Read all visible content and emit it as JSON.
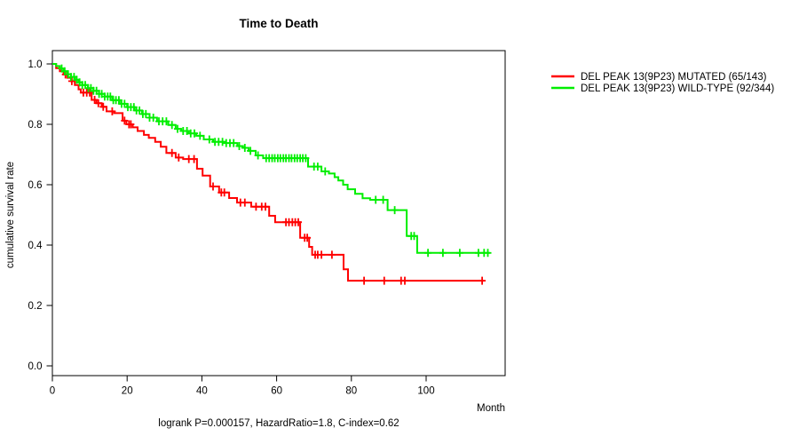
{
  "chart_data": {
    "type": "line",
    "subtype": "kaplan-meier-step-survival",
    "title": "Time to Death",
    "xlabel": "Month",
    "ylabel": "cumulative survival rate",
    "annotation": "logrank P=0.000157, HazardRatio=1.8, C-index=0.62",
    "xlim": [
      0,
      121
    ],
    "ylim": [
      0.0,
      1.0
    ],
    "xticks": [
      0,
      20,
      40,
      60,
      80,
      100
    ],
    "yticks": [
      0.0,
      0.2,
      0.4,
      0.6,
      0.8,
      1.0
    ],
    "ytick_labels": [
      "0.0",
      "0.2",
      "0.4",
      "0.6",
      "0.8",
      "1.0"
    ],
    "grid": false,
    "legend_position": "right-outside",
    "censor_glyph": "+",
    "series": [
      {
        "name": "DEL PEAK 13(9P23) MUTATED (65/143)",
        "color": "#ff0000",
        "end_time": 115.5,
        "steps": [
          [
            0,
            1.0
          ],
          [
            1,
            0.986
          ],
          [
            2,
            0.976
          ],
          [
            3,
            0.965
          ],
          [
            4,
            0.954
          ],
          [
            5,
            0.943
          ],
          [
            6,
            0.93
          ],
          [
            7,
            0.916
          ],
          [
            7.6,
            0.905
          ],
          [
            10.5,
            0.881
          ],
          [
            11.8,
            0.87
          ],
          [
            13.2,
            0.858
          ],
          [
            14.5,
            0.843
          ],
          [
            16.5,
            0.837
          ],
          [
            18.8,
            0.812
          ],
          [
            19.8,
            0.8
          ],
          [
            21.5,
            0.79
          ],
          [
            22.8,
            0.778
          ],
          [
            24.5,
            0.765
          ],
          [
            25.8,
            0.755
          ],
          [
            27.5,
            0.742
          ],
          [
            29,
            0.726
          ],
          [
            30.5,
            0.705
          ],
          [
            33,
            0.69
          ],
          [
            35,
            0.685
          ],
          [
            38.7,
            0.653
          ],
          [
            40.2,
            0.63
          ],
          [
            42.2,
            0.594
          ],
          [
            44.6,
            0.574
          ],
          [
            47.3,
            0.556
          ],
          [
            49.4,
            0.541
          ],
          [
            53.2,
            0.527
          ],
          [
            58,
            0.497
          ],
          [
            59.6,
            0.476
          ],
          [
            66.3,
            0.424
          ],
          [
            68.7,
            0.394
          ],
          [
            69.5,
            0.368
          ],
          [
            77.9,
            0.32
          ],
          [
            79.1,
            0.282
          ]
        ],
        "censor_times": [
          3.5,
          5.2,
          8.3,
          9.2,
          10,
          11.3,
          12.3,
          13.6,
          16,
          19.3,
          20.5,
          21,
          32,
          33.8,
          36.5,
          37.9,
          43,
          45.2,
          46,
          50.3,
          51.5,
          54.5,
          56,
          57,
          62.5,
          63.3,
          64.2,
          65,
          65.8,
          67.5,
          68.2,
          70.3,
          71,
          72,
          74.8,
          83.4,
          88.8,
          93.3,
          94.3,
          115
        ]
      },
      {
        "name": "DEL PEAK 13(9P23) WILD-TYPE (92/344)",
        "color": "#00ee00",
        "end_time": 117,
        "steps": [
          [
            0,
            1.0
          ],
          [
            1,
            0.993
          ],
          [
            2,
            0.985
          ],
          [
            3,
            0.976
          ],
          [
            4,
            0.966
          ],
          [
            5,
            0.957
          ],
          [
            6,
            0.948
          ],
          [
            7,
            0.939
          ],
          [
            8,
            0.93
          ],
          [
            9.5,
            0.92
          ],
          [
            11,
            0.911
          ],
          [
            12.5,
            0.901
          ],
          [
            14,
            0.892
          ],
          [
            16,
            0.88
          ],
          [
            18,
            0.868
          ],
          [
            20,
            0.857
          ],
          [
            22,
            0.846
          ],
          [
            24,
            0.834
          ],
          [
            26,
            0.822
          ],
          [
            28,
            0.81
          ],
          [
            31,
            0.798
          ],
          [
            33,
            0.785
          ],
          [
            34.5,
            0.778
          ],
          [
            36.5,
            0.77
          ],
          [
            38.5,
            0.762
          ],
          [
            40.5,
            0.75
          ],
          [
            43,
            0.742
          ],
          [
            46,
            0.738
          ],
          [
            49.5,
            0.728
          ],
          [
            51,
            0.722
          ],
          [
            52.5,
            0.712
          ],
          [
            54.4,
            0.697
          ],
          [
            56.4,
            0.688
          ],
          [
            68.4,
            0.66
          ],
          [
            72,
            0.644
          ],
          [
            74,
            0.637
          ],
          [
            75.5,
            0.625
          ],
          [
            76.5,
            0.614
          ],
          [
            77.8,
            0.6
          ],
          [
            79,
            0.585
          ],
          [
            81,
            0.57
          ],
          [
            83,
            0.555
          ],
          [
            85,
            0.55
          ],
          [
            89.7,
            0.516
          ],
          [
            94.8,
            0.43
          ],
          [
            97.6,
            0.374
          ]
        ],
        "censor_times": [
          2.5,
          3.3,
          4.2,
          5,
          5.8,
          6.5,
          7.3,
          8,
          8.8,
          9.6,
          10.3,
          11,
          11.8,
          12.5,
          13.2,
          14,
          14.8,
          15.5,
          16.3,
          17,
          17.8,
          18.5,
          19.3,
          20.2,
          21,
          21.8,
          22.5,
          23.3,
          24.2,
          25,
          26,
          27,
          28.5,
          29.5,
          30.5,
          32,
          33.5,
          35,
          36,
          37,
          38,
          39.5,
          42,
          43.5,
          44.5,
          45.5,
          46.5,
          47.5,
          48.5,
          50,
          51.5,
          53,
          55,
          57.2,
          58,
          58.8,
          59.5,
          60.3,
          61,
          61.8,
          62.5,
          63.3,
          64,
          64.8,
          65.5,
          66.3,
          67,
          67.8,
          70,
          71,
          73,
          86.5,
          88.5,
          91.6,
          96,
          96.8,
          100.5,
          104.5,
          109,
          114,
          115.5,
          116.5
        ]
      }
    ]
  }
}
